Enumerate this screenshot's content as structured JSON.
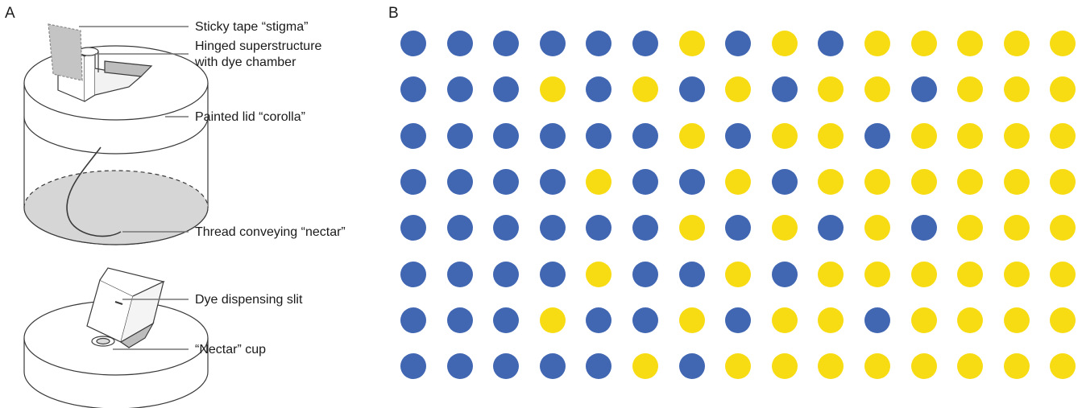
{
  "panels": {
    "a": {
      "letter": "A",
      "callouts": [
        {
          "key": "stigma",
          "text": "Sticky tape “stigma”"
        },
        {
          "key": "superstructure",
          "text": "Hinged superstructure"
        },
        {
          "key": "dye_chamber",
          "text": "with dye chamber"
        },
        {
          "key": "corolla",
          "text": "Painted lid “corolla”"
        },
        {
          "key": "thread",
          "text": "Thread conveying “nectar”"
        },
        {
          "key": "slit",
          "text": "Dye dispensing slit"
        },
        {
          "key": "cup",
          "text": "“Nectar” cup"
        }
      ]
    },
    "b": {
      "letter": "B",
      "colors": {
        "blue": "#4166b2",
        "yellow": "#f7dc14"
      },
      "pattern": [
        [
          "B",
          "B",
          "B",
          "B",
          "B",
          "B",
          "Y",
          "B",
          "Y",
          "B",
          "Y",
          "Y",
          "Y",
          "Y",
          "Y"
        ],
        [
          "B",
          "B",
          "B",
          "Y",
          "B",
          "Y",
          "B",
          "Y",
          "B",
          "Y",
          "Y",
          "B",
          "Y",
          "Y",
          "Y"
        ],
        [
          "B",
          "B",
          "B",
          "B",
          "B",
          "B",
          "Y",
          "B",
          "Y",
          "Y",
          "B",
          "Y",
          "Y",
          "Y",
          "Y"
        ],
        [
          "B",
          "B",
          "B",
          "B",
          "Y",
          "B",
          "B",
          "Y",
          "B",
          "Y",
          "Y",
          "Y",
          "Y",
          "Y",
          "Y"
        ],
        [
          "B",
          "B",
          "B",
          "B",
          "B",
          "B",
          "Y",
          "B",
          "Y",
          "B",
          "Y",
          "B",
          "Y",
          "Y",
          "Y"
        ],
        [
          "B",
          "B",
          "B",
          "B",
          "Y",
          "B",
          "B",
          "Y",
          "B",
          "Y",
          "Y",
          "Y",
          "Y",
          "Y",
          "Y"
        ],
        [
          "B",
          "B",
          "B",
          "Y",
          "B",
          "B",
          "Y",
          "B",
          "Y",
          "Y",
          "B",
          "Y",
          "Y",
          "Y",
          "Y"
        ],
        [
          "B",
          "B",
          "B",
          "B",
          "B",
          "Y",
          "B",
          "Y",
          "Y",
          "Y",
          "Y",
          "Y",
          "Y",
          "Y",
          "Y"
        ]
      ]
    }
  }
}
